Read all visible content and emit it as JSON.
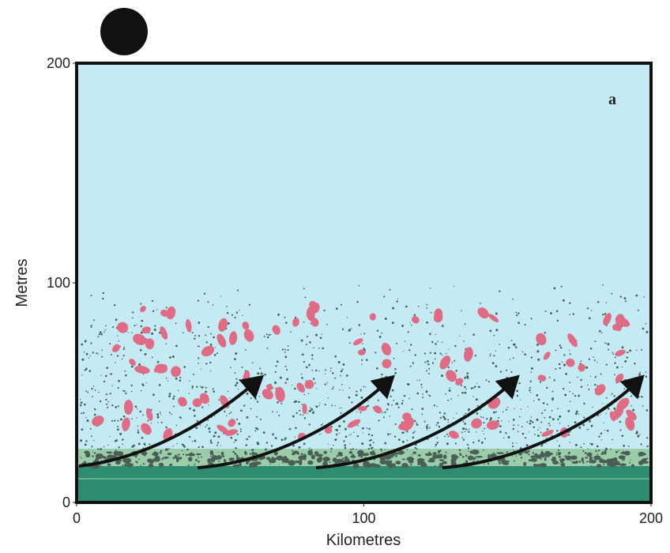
{
  "panel_label": "a",
  "x_axis": {
    "label": "Kilometres",
    "lim": [
      0,
      200
    ],
    "ticks": [
      0,
      100,
      200
    ]
  },
  "y_axis": {
    "label": "Metres",
    "lim": [
      0,
      200
    ],
    "ticks": [
      0,
      100,
      200
    ]
  }
}
